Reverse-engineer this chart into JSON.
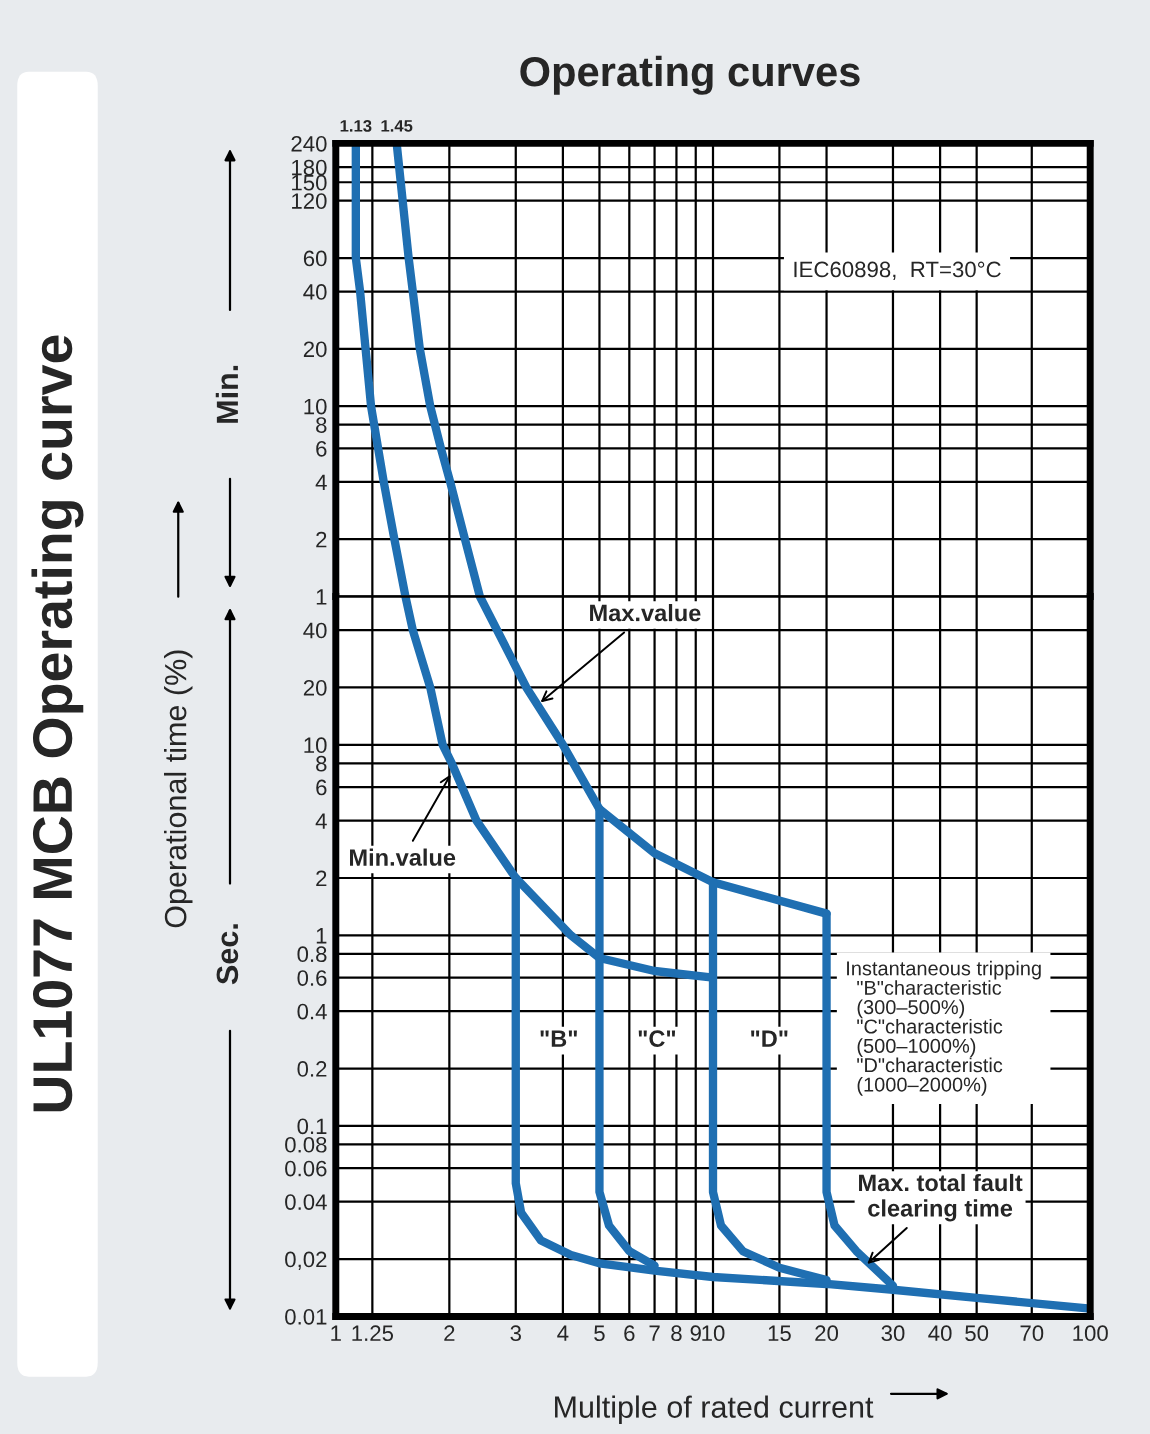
{
  "chart_data": [
    {
      "type": "line",
      "title": "Operating curves",
      "log": "xy",
      "grid": true,
      "line_style": "solid",
      "marker": "none",
      "tick_labels": "y",
      "xlim": [
        1,
        100
      ],
      "xticks": [
        1,
        1.25,
        2,
        3,
        4,
        5,
        6,
        7,
        8,
        9,
        10,
        15,
        20,
        30,
        40,
        50,
        70,
        100
      ],
      "ylim": [
        1,
        240
      ],
      "yticks": [
        240,
        180,
        150,
        120,
        60,
        40,
        20,
        10,
        8,
        6,
        4,
        2,
        1
      ],
      "series": [
        {
          "color": "#1f6fb2",
          "x": [
            1.13,
            1.13,
            1.16,
            1.24,
            1.34,
            1.43,
            1.53
          ],
          "values": [
            240,
            60,
            40,
            10,
            4,
            2,
            1
          ]
        },
        {
          "color": "#1f6fb2",
          "x": [
            1.45,
            1.56,
            1.6,
            1.67,
            1.78,
            1.9,
            2.01,
            2.2,
            2.41
          ],
          "values": [
            240,
            60,
            40,
            20,
            10,
            6,
            4,
            2,
            1
          ]
        }
      ],
      "annotations": [
        "IEC60898,  RT=30°C",
        "Min.",
        "UL1077 MCB Operating curve",
        {
          "text": "1.13",
          "x": 1.13,
          "y": 240
        },
        {
          "text": "1.45",
          "x": 1.45,
          "y": 240
        }
      ]
    },
    {
      "type": "line",
      "xlabel": "Multiple of rated current",
      "ylabel": "Operational time (%)",
      "log": "xy",
      "grid": true,
      "line_style": "solid",
      "marker": "none",
      "xlim": [
        1,
        100
      ],
      "xticks": [
        1,
        1.25,
        2,
        3,
        4,
        5,
        6,
        7,
        8,
        9,
        10,
        15,
        20,
        30,
        40,
        50,
        70,
        100
      ],
      "ylim": [
        0.01,
        60
      ],
      "yticks": [
        40,
        20,
        10,
        8,
        6,
        4,
        2,
        1,
        0.8,
        0.6,
        0.4,
        0.2,
        0.1,
        0.08,
        0.06,
        0.04,
        {
          "value": 0.02,
          "label": "0,02"
        },
        0.01
      ],
      "series": [
        {
          "color": "#1f6fb2",
          "x": [
            1.53,
            1.6,
            1.78,
            1.92,
            2.03,
            2.36,
            3.0,
            4.2,
            5.0,
            7.0,
            10.0
          ],
          "values": [
            60,
            40,
            20,
            10,
            8,
            4,
            2,
            1,
            0.76,
            0.65,
            0.6
          ]
        },
        {
          "color": "#1f6fb2",
          "x": [
            2.41,
            3.2,
            4.0,
            5.0,
            7.0,
            10.0,
            20.0
          ],
          "values": [
            60,
            20,
            10,
            4.6,
            2.7,
            1.9,
            1.3
          ]
        },
        {
          "color": "#1f6fb2",
          "x": [
            3,
            3,
            3.1,
            3.5,
            4.2,
            5,
            7,
            10,
            20,
            30,
            50,
            100
          ],
          "values": [
            2,
            0.05,
            0.035,
            0.025,
            0.021,
            0.019,
            0.0174,
            0.0161,
            0.0148,
            0.0138,
            0.0125,
            0.011
          ]
        },
        {
          "color": "#1f6fb2",
          "x": [
            5,
            5,
            5.3,
            6,
            7
          ],
          "values": [
            4.6,
            0.045,
            0.03,
            0.022,
            0.0185
          ]
        },
        {
          "color": "#1f6fb2",
          "x": [
            10,
            10,
            10.5,
            12,
            15,
            20
          ],
          "values": [
            1.9,
            0.045,
            0.03,
            0.022,
            0.018,
            0.0155
          ]
        },
        {
          "color": "#1f6fb2",
          "x": [
            20,
            20,
            21,
            24,
            30
          ],
          "values": [
            1.3,
            0.045,
            0.03,
            0.022,
            0.0145
          ]
        }
      ],
      "annotations": [
        {
          "text": "Max.value",
          "x": 3.4,
          "y": 16
        },
        {
          "text": "Min.value",
          "x": 2.05,
          "y": 7.4
        },
        {
          "text": "Max. total fault\nclearing time",
          "x": 25,
          "y": 0.018
        },
        {
          "text": "\"B\"",
          "x": 3.9,
          "y": 0.28
        },
        {
          "text": "\"C\"",
          "x": 7.1,
          "y": 0.28
        },
        {
          "text": "\"D\"",
          "x": 14.1,
          "y": 0.28
        },
        "Instantaneous tripping\n  \"B\"characteristic\n  (300–500%)\n  \"C\"characteristic\n  (500–1000%)\n  \"D\"characteristic\n  (1000–2000%)",
        "Sec."
      ]
    }
  ]
}
